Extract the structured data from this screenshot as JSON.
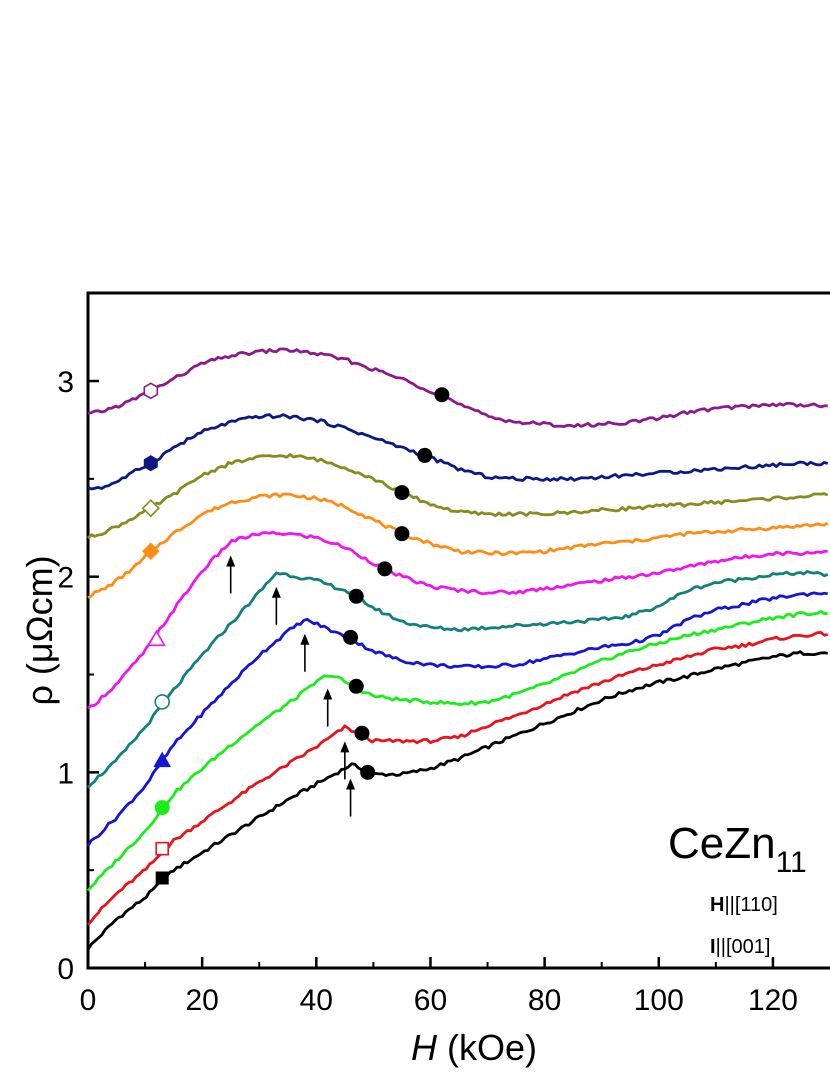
{
  "chart_data": {
    "type": "line",
    "title": "",
    "xlabel": "H",
    "xlabel_unit": "(kOe)",
    "ylabel": "ρ (μΩcm)",
    "xlim": [
      0,
      130
    ],
    "ylim": [
      0,
      3.45
    ],
    "x_ticks": [
      0,
      20,
      40,
      60,
      80,
      100,
      120
    ],
    "y_ticks": [
      0,
      1,
      2,
      3
    ],
    "grid": false,
    "annotations": {
      "compound_main": "CeZn",
      "compound_sub": "11",
      "field_dir_bold": "H",
      "field_dir_rest": "||[110]",
      "current_dir_bold": "I",
      "current_dir_rest": "||[001]"
    },
    "series": [
      {
        "color": "#000000",
        "marker": "filled-square",
        "marker_at": [
          13,
          0.46
        ],
        "transition": [
          49,
          1.0
        ],
        "arrow_x": 46,
        "x": [
          0,
          5,
          10,
          15,
          20,
          25,
          30,
          35,
          40,
          45,
          46,
          48,
          50,
          55,
          60,
          65,
          70,
          75,
          80,
          85,
          90,
          95,
          100,
          105,
          110,
          115,
          120,
          125,
          130
        ],
        "y": [
          0.1,
          0.25,
          0.36,
          0.5,
          0.59,
          0.68,
          0.77,
          0.86,
          0.94,
          1.02,
          1.04,
          1.02,
          0.99,
          0.99,
          1.02,
          1.07,
          1.13,
          1.19,
          1.25,
          1.31,
          1.37,
          1.42,
          1.46,
          1.49,
          1.53,
          1.56,
          1.59,
          1.61,
          1.61
        ]
      },
      {
        "color": "#e8141b",
        "marker": "open-square",
        "marker_at": [
          13,
          0.61
        ],
        "transition": [
          48,
          1.2
        ],
        "arrow_x": 45,
        "x": [
          0,
          5,
          10,
          15,
          20,
          25,
          30,
          35,
          40,
          44,
          45,
          48,
          50,
          55,
          60,
          65,
          70,
          75,
          80,
          85,
          90,
          95,
          100,
          105,
          110,
          115,
          120,
          125,
          130
        ],
        "y": [
          0.23,
          0.38,
          0.5,
          0.65,
          0.75,
          0.85,
          0.95,
          1.04,
          1.13,
          1.21,
          1.23,
          1.19,
          1.16,
          1.16,
          1.16,
          1.18,
          1.24,
          1.29,
          1.35,
          1.41,
          1.46,
          1.51,
          1.55,
          1.59,
          1.63,
          1.65,
          1.68,
          1.7,
          1.71
        ]
      },
      {
        "color": "#1aee1a",
        "marker": "filled-circle",
        "marker_at": [
          13,
          0.82
        ],
        "transition": [
          47,
          1.44
        ],
        "arrow_x": 42,
        "x": [
          0,
          5,
          10,
          15,
          20,
          25,
          30,
          35,
          40,
          42,
          44,
          47,
          50,
          55,
          60,
          65,
          70,
          75,
          80,
          85,
          90,
          95,
          100,
          105,
          110,
          115,
          120,
          125,
          130
        ],
        "y": [
          0.4,
          0.55,
          0.7,
          0.89,
          1.02,
          1.14,
          1.25,
          1.35,
          1.46,
          1.5,
          1.48,
          1.43,
          1.39,
          1.37,
          1.36,
          1.35,
          1.36,
          1.4,
          1.45,
          1.51,
          1.57,
          1.62,
          1.66,
          1.7,
          1.73,
          1.76,
          1.79,
          1.81,
          1.82
        ]
      },
      {
        "color": "#1515d5",
        "marker": "filled-triangle",
        "marker_at": [
          13,
          1.06
        ],
        "transition": [
          46,
          1.69
        ],
        "arrow_x": 38,
        "x": [
          0,
          5,
          10,
          15,
          20,
          25,
          30,
          35,
          38,
          40,
          43,
          46,
          50,
          55,
          60,
          65,
          70,
          75,
          80,
          85,
          90,
          95,
          100,
          105,
          110,
          115,
          120,
          125,
          130
        ],
        "y": [
          0.63,
          0.77,
          0.93,
          1.14,
          1.3,
          1.45,
          1.6,
          1.72,
          1.78,
          1.76,
          1.72,
          1.68,
          1.62,
          1.57,
          1.55,
          1.54,
          1.54,
          1.55,
          1.58,
          1.61,
          1.64,
          1.66,
          1.7,
          1.78,
          1.83,
          1.86,
          1.89,
          1.91,
          1.92
        ]
      },
      {
        "color": "#128080",
        "marker": "open-circle",
        "marker_at": [
          13,
          1.36
        ],
        "transition": [
          47,
          1.9
        ],
        "arrow_x": 33,
        "x": [
          0,
          5,
          10,
          15,
          20,
          25,
          30,
          33,
          35,
          40,
          45,
          47,
          50,
          55,
          60,
          65,
          70,
          75,
          80,
          85,
          90,
          95,
          100,
          105,
          110,
          115,
          120,
          125,
          130
        ],
        "y": [
          0.93,
          1.06,
          1.23,
          1.42,
          1.6,
          1.76,
          1.92,
          2.02,
          2.01,
          1.98,
          1.93,
          1.9,
          1.84,
          1.77,
          1.74,
          1.73,
          1.74,
          1.75,
          1.76,
          1.77,
          1.78,
          1.8,
          1.85,
          1.93,
          1.97,
          1.99,
          2.01,
          2.02,
          2.01
        ]
      },
      {
        "color": "#f014f0",
        "marker": "open-triangle",
        "marker_at": [
          12,
          1.68
        ],
        "transition": [
          52,
          2.04
        ],
        "arrow_x": 25,
        "x": [
          0,
          5,
          10,
          15,
          20,
          25,
          30,
          35,
          40,
          45,
          50,
          52,
          55,
          60,
          65,
          70,
          75,
          80,
          85,
          90,
          95,
          100,
          105,
          110,
          115,
          120,
          125,
          130
        ],
        "y": [
          1.32,
          1.45,
          1.62,
          1.83,
          2.03,
          2.18,
          2.22,
          2.22,
          2.2,
          2.15,
          2.07,
          2.04,
          2.0,
          1.95,
          1.93,
          1.92,
          1.92,
          1.94,
          1.96,
          1.98,
          2.0,
          2.02,
          2.05,
          2.08,
          2.1,
          2.12,
          2.12,
          2.13
        ]
      },
      {
        "color": "#ff8c14",
        "marker": "filled-diamond",
        "marker_at": [
          11,
          2.13
        ],
        "transition": [
          55,
          2.22
        ],
        "x": [
          0,
          3,
          6,
          9,
          11,
          15,
          20,
          25,
          30,
          35,
          40,
          45,
          50,
          55,
          60,
          65,
          70,
          75,
          80,
          85,
          90,
          95,
          100,
          105,
          110,
          115,
          120,
          125,
          130
        ],
        "y": [
          1.9,
          1.94,
          2.0,
          2.07,
          2.13,
          2.22,
          2.32,
          2.38,
          2.41,
          2.42,
          2.4,
          2.36,
          2.29,
          2.22,
          2.17,
          2.13,
          2.12,
          2.12,
          2.13,
          2.15,
          2.17,
          2.18,
          2.2,
          2.22,
          2.23,
          2.24,
          2.25,
          2.26,
          2.27
        ]
      },
      {
        "color": "#8a8a1e",
        "marker": "open-diamond",
        "marker_at": [
          11,
          2.35
        ],
        "transition": [
          55,
          2.43
        ],
        "x": [
          0,
          3,
          6,
          9,
          11,
          15,
          20,
          25,
          30,
          35,
          40,
          45,
          50,
          55,
          60,
          65,
          70,
          75,
          80,
          85,
          90,
          95,
          100,
          105,
          110,
          115,
          120,
          125,
          130
        ],
        "y": [
          2.2,
          2.23,
          2.27,
          2.32,
          2.35,
          2.42,
          2.52,
          2.58,
          2.61,
          2.62,
          2.6,
          2.56,
          2.5,
          2.43,
          2.37,
          2.33,
          2.32,
          2.32,
          2.32,
          2.33,
          2.34,
          2.35,
          2.36,
          2.37,
          2.38,
          2.39,
          2.4,
          2.41,
          2.42
        ]
      },
      {
        "color": "#0a1a82",
        "marker": "filled-hexagon",
        "marker_at": [
          11,
          2.58
        ],
        "transition": [
          59,
          2.62
        ],
        "x": [
          0,
          3,
          6,
          9,
          11,
          15,
          20,
          25,
          30,
          35,
          40,
          45,
          50,
          55,
          59,
          65,
          70,
          75,
          80,
          85,
          90,
          95,
          100,
          105,
          110,
          115,
          120,
          125,
          130
        ],
        "y": [
          2.45,
          2.46,
          2.5,
          2.55,
          2.58,
          2.66,
          2.74,
          2.79,
          2.82,
          2.82,
          2.8,
          2.76,
          2.71,
          2.66,
          2.62,
          2.55,
          2.51,
          2.5,
          2.5,
          2.5,
          2.51,
          2.52,
          2.53,
          2.54,
          2.55,
          2.56,
          2.57,
          2.58,
          2.58
        ]
      },
      {
        "color": "#8c1a8c",
        "marker": "open-hexagon",
        "marker_at": [
          11,
          2.95
        ],
        "transition": [
          62,
          2.93
        ],
        "x": [
          0,
          3,
          6,
          9,
          11,
          15,
          20,
          25,
          30,
          35,
          40,
          45,
          50,
          55,
          60,
          62,
          65,
          70,
          75,
          80,
          85,
          90,
          95,
          100,
          105,
          110,
          115,
          120,
          125,
          130
        ],
        "y": [
          2.83,
          2.85,
          2.88,
          2.92,
          2.95,
          3.01,
          3.09,
          3.13,
          3.15,
          3.16,
          3.14,
          3.11,
          3.06,
          3.01,
          2.95,
          2.93,
          2.88,
          2.82,
          2.79,
          2.78,
          2.77,
          2.78,
          2.79,
          2.81,
          2.84,
          2.86,
          2.87,
          2.88,
          2.88,
          2.87
        ]
      }
    ]
  }
}
